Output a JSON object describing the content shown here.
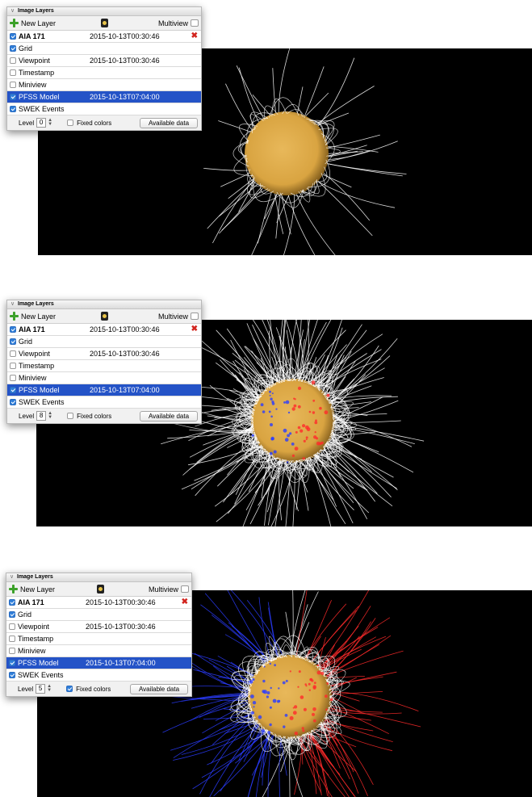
{
  "panels": [
    {
      "title": "Image Layers",
      "new_layer": "New Layer",
      "multiview": "Multiview",
      "layers": [
        {
          "name": "AIA 171",
          "timestamp": "2015-10-13T00:30:46",
          "checked": true,
          "bold": true,
          "deletable": true
        },
        {
          "name": "Grid",
          "timestamp": "",
          "checked": true
        },
        {
          "name": "Viewpoint",
          "timestamp": "2015-10-13T00:30:46",
          "checked": false
        },
        {
          "name": "Timestamp",
          "timestamp": "",
          "checked": false
        },
        {
          "name": "Miniview",
          "timestamp": "",
          "checked": false
        },
        {
          "name": "PFSS Model",
          "timestamp": "2015-10-13T07:04:00",
          "checked": true,
          "selected": true
        },
        {
          "name": "SWEK Events",
          "timestamp": "",
          "checked": true
        }
      ],
      "level_label": "Level",
      "level_value": "0",
      "fixed_colors_label": "Fixed colors",
      "fixed_colors_checked": false,
      "available_data": "Available data",
      "delete_glyph": "✖"
    },
    {
      "title": "Image Layers",
      "new_layer": "New Layer",
      "multiview": "Multiview",
      "layers": [
        {
          "name": "AIA 171",
          "timestamp": "2015-10-13T00:30:46",
          "checked": true,
          "bold": true,
          "deletable": true
        },
        {
          "name": "Grid",
          "timestamp": "",
          "checked": true
        },
        {
          "name": "Viewpoint",
          "timestamp": "2015-10-13T00:30:46",
          "checked": false
        },
        {
          "name": "Timestamp",
          "timestamp": "",
          "checked": false
        },
        {
          "name": "Miniview",
          "timestamp": "",
          "checked": false
        },
        {
          "name": "PFSS Model",
          "timestamp": "2015-10-13T07:04:00",
          "checked": true,
          "selected": true
        },
        {
          "name": "SWEK Events",
          "timestamp": "",
          "checked": true
        }
      ],
      "level_label": "Level",
      "level_value": "8",
      "fixed_colors_label": "Fixed colors",
      "fixed_colors_checked": false,
      "available_data": "Available data",
      "delete_glyph": "✖"
    },
    {
      "title": "Image Layers",
      "new_layer": "New Layer",
      "multiview": "Multiview",
      "layers": [
        {
          "name": "AIA 171",
          "timestamp": "2015-10-13T00:30:46",
          "checked": true,
          "bold": true,
          "deletable": true
        },
        {
          "name": "Grid",
          "timestamp": "",
          "checked": true
        },
        {
          "name": "Viewpoint",
          "timestamp": "2015-10-13T00:30:46",
          "checked": false
        },
        {
          "name": "Timestamp",
          "timestamp": "",
          "checked": false
        },
        {
          "name": "Miniview",
          "timestamp": "",
          "checked": false
        },
        {
          "name": "PFSS Model",
          "timestamp": "2015-10-13T07:04:00",
          "checked": true,
          "selected": true
        },
        {
          "name": "SWEK Events",
          "timestamp": "",
          "checked": true
        }
      ],
      "level_label": "Level",
      "level_value": "5",
      "fixed_colors_label": "Fixed colors",
      "fixed_colors_checked": true,
      "available_data": "Available data",
      "delete_glyph": "✖"
    }
  ],
  "views": [
    {
      "pfss_level": 0,
      "fixed_colors": false
    },
    {
      "pfss_level": 8,
      "fixed_colors": false
    },
    {
      "pfss_level": 5,
      "fixed_colors": true
    }
  ],
  "colors": {
    "selection": "#2453c7",
    "checkbox": "#2f7ed9",
    "add_icon": "#3ca12a",
    "delete_icon": "#d2241e",
    "open_field_line": "#ffffff",
    "positive_polarity": "#ff2a2a",
    "negative_polarity": "#2a3cff",
    "sun_core": "#d9a441",
    "background": "#000000"
  }
}
